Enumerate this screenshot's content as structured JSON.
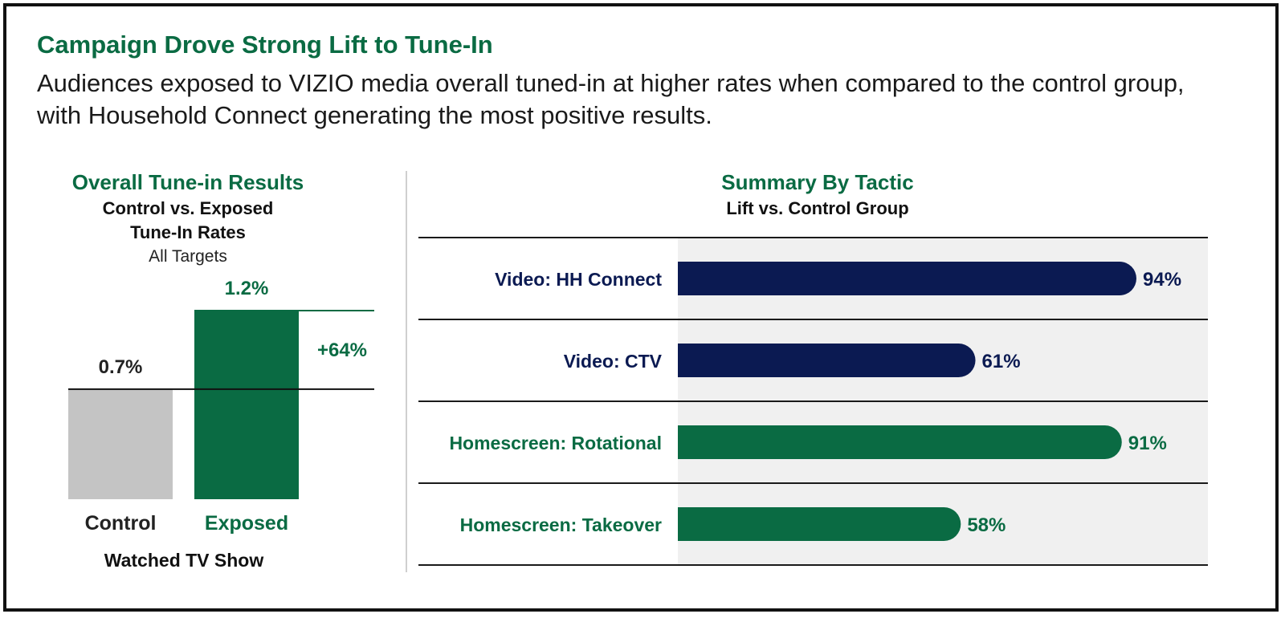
{
  "header": {
    "title": "Campaign Drove Strong Lift to Tune-In",
    "subtitle": "Audiences exposed to VIZIO media overall tuned-in at higher rates when compared to the control group, with Household Connect generating the most positive results."
  },
  "colors": {
    "green": "#0a6b43",
    "navy": "#0b1a52",
    "gray_bar": "#c4c4c4",
    "panel_bg": "#f0f0f0"
  },
  "left_chart": {
    "title": "Overall Tune-in Results",
    "subtitle_line1": "Control vs. Exposed",
    "subtitle_line2": "Tune-In Rates",
    "note": "All Targets",
    "lift_label": "+64%",
    "footer": "Watched TV Show"
  },
  "right_chart": {
    "title": "Summary By Tactic",
    "subtitle": "Lift vs. Control Group"
  },
  "chart_data": [
    {
      "type": "bar",
      "title": "Overall Tune-in Results",
      "categories": [
        "Control",
        "Exposed"
      ],
      "values": [
        0.7,
        1.2
      ],
      "value_labels": [
        "0.7%",
        "1.2%"
      ],
      "lift": "+64%",
      "xlabel": "Watched TV Show",
      "ylim": [
        0,
        1.2
      ]
    },
    {
      "type": "bar",
      "orientation": "horizontal",
      "title": "Summary By Tactic",
      "categories": [
        "Video: HH Connect",
        "Video: CTV",
        "Homescreen: Rotational",
        "Homescreen: Takeover"
      ],
      "values": [
        94,
        61,
        91,
        58
      ],
      "value_labels": [
        "94%",
        "61%",
        "91%",
        "58%"
      ],
      "bar_colors": [
        "#0b1a52",
        "#0b1a52",
        "#0a6b43",
        "#0a6b43"
      ],
      "xlim": [
        0,
        100
      ]
    }
  ]
}
